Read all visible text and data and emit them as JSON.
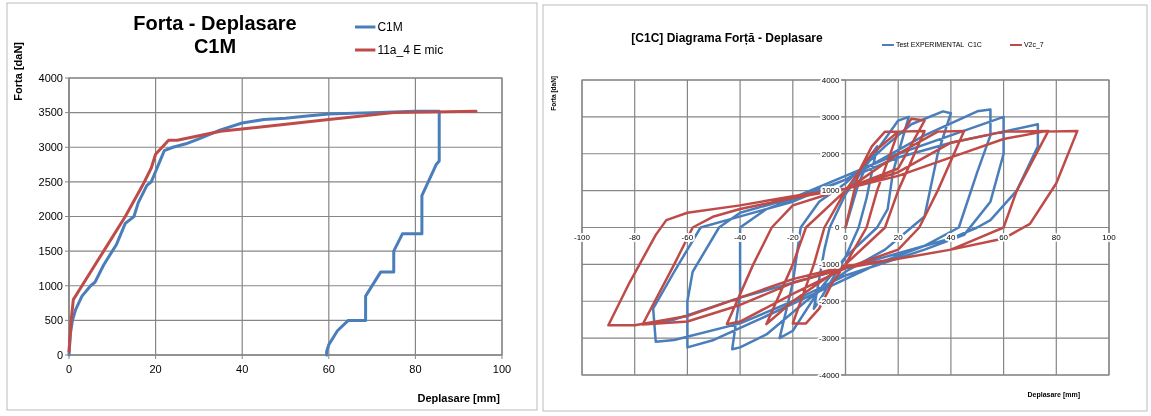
{
  "chart_data": [
    {
      "type": "line",
      "title": "Forta - Deplasare",
      "subtitle": "C1M",
      "xlabel": "Deplasare [mm]",
      "ylabel": "Forta [daN]",
      "xlim": [
        0,
        100
      ],
      "ylim": [
        0,
        4000
      ],
      "xticks": [
        0,
        20,
        40,
        60,
        80,
        100
      ],
      "yticks": [
        0,
        500,
        1000,
        1500,
        2000,
        2500,
        3000,
        3500,
        4000
      ],
      "grid": true,
      "legend": "top right",
      "series": [
        {
          "name": "C1M",
          "color": "#4a7ebb",
          "x": [
            0,
            0.3,
            0.8,
            1.5,
            3,
            5,
            6,
            8,
            10,
            11,
            13,
            15,
            16,
            18,
            19,
            20,
            21,
            22,
            24,
            27,
            30,
            35,
            40,
            45,
            50,
            55,
            60,
            70,
            80,
            85.5,
            85.5,
            84.8,
            81.5,
            81.5,
            77,
            75,
            75,
            72,
            68.5,
            68.5,
            64.5,
            62,
            61,
            60,
            59.5,
            59.5
          ],
          "values": [
            0,
            300,
            500,
            650,
            850,
            1000,
            1050,
            1300,
            1500,
            1600,
            1900,
            2000,
            2200,
            2450,
            2500,
            2650,
            2800,
            2950,
            3000,
            3050,
            3120,
            3250,
            3350,
            3400,
            3420,
            3450,
            3480,
            3500,
            3520,
            3520,
            2800,
            2750,
            2300,
            1750,
            1750,
            1500,
            1200,
            1200,
            850,
            500,
            500,
            350,
            250,
            150,
            50,
            0
          ]
        },
        {
          "name": "11a_4 E mic",
          "color": "#be4b48",
          "x": [
            0,
            0.5,
            1,
            3,
            8,
            13,
            17,
            19,
            20,
            23,
            25,
            35,
            60,
            75,
            94
          ],
          "values": [
            50,
            500,
            800,
            1000,
            1500,
            2000,
            2450,
            2700,
            2900,
            3100,
            3100,
            3230,
            3400,
            3500,
            3520
          ]
        }
      ]
    },
    {
      "type": "line",
      "title": "[C1C] Diagrama Forță - Deplasare",
      "xlabel": "Deplasare [mm]",
      "ylabel": "Forta [daN]",
      "xlim": [
        -100,
        100
      ],
      "ylim": [
        -4000,
        4000
      ],
      "xticks": [
        -100,
        -80,
        -60,
        -40,
        -20,
        0,
        20,
        40,
        60,
        80,
        100
      ],
      "yticks": [
        -4000,
        -3000,
        -2000,
        -1000,
        0,
        1000,
        2000,
        3000,
        4000
      ],
      "grid": true,
      "legend": "top",
      "series": [
        {
          "name": "Test EXPERIMENTAL  C1C",
          "color": "#4a7ebb",
          "x": [
            0,
            5,
            10,
            12,
            8,
            5,
            0,
            -5,
            -10,
            -12,
            -8,
            -6,
            0,
            10,
            20,
            24,
            18,
            16,
            12,
            0,
            -10,
            -20,
            -25,
            -20,
            -17,
            -10,
            0,
            15,
            25,
            37,
            40,
            35,
            30,
            25,
            15,
            0,
            -15,
            -30,
            -40,
            -43,
            -40,
            -40,
            -30,
            -15,
            0,
            15,
            30,
            50,
            55,
            55,
            50,
            43,
            30,
            15,
            0,
            -15,
            -30,
            -50,
            -60,
            -60,
            -58,
            -48,
            -40,
            -20,
            0,
            20,
            40,
            60,
            60,
            55,
            45,
            30,
            0,
            -20,
            -40,
            -65,
            -72,
            -73,
            -65,
            -55,
            -45,
            -20,
            0,
            20,
            40,
            60,
            73,
            73,
            65,
            55,
            50,
            40,
            20,
            0,
            -20,
            -40,
            -65,
            -72
          ],
          "values": [
            0,
            1200,
            2000,
            2200,
            800,
            0,
            -800,
            -1400,
            -2000,
            -2200,
            -600,
            0,
            900,
            1900,
            2900,
            3000,
            1500,
            500,
            0,
            -800,
            -1700,
            -2800,
            -3000,
            -1500,
            0,
            700,
            1200,
            2200,
            2800,
            3150,
            3100,
            2000,
            300,
            0,
            -600,
            -1200,
            -2000,
            -2900,
            -3250,
            -3300,
            -1800,
            0,
            500,
            900,
            1300,
            1900,
            2500,
            3150,
            3200,
            2500,
            1500,
            0,
            -500,
            -900,
            -1400,
            -1900,
            -2400,
            -3050,
            -3250,
            -2000,
            -1200,
            0,
            400,
            800,
            1400,
            2000,
            2500,
            3000,
            2000,
            700,
            -200,
            -600,
            -1300,
            -2000,
            -2600,
            -3050,
            -3100,
            -2200,
            -1200,
            0,
            200,
            700,
            1300,
            1900,
            2300,
            2600,
            2800,
            2200,
            1000,
            200,
            0,
            -300,
            -700,
            -1100,
            -1500,
            -1900,
            -2500,
            -2600
          ]
        },
        {
          "name": "V2c_7",
          "color": "#be4b48",
          "x": [
            0,
            5,
            10,
            15,
            20,
            12,
            8,
            0,
            -5,
            -10,
            -15,
            -20,
            -12,
            -8,
            0,
            10,
            20,
            30,
            20,
            15,
            0,
            -20,
            -30,
            -20,
            -15,
            0,
            20,
            35,
            45,
            35,
            28,
            20,
            0,
            -20,
            -40,
            -45,
            -35,
            -28,
            -20,
            0,
            20,
            40,
            60,
            77,
            65,
            60,
            50,
            40,
            20,
            0,
            -20,
            -40,
            -60,
            -77,
            -65,
            -58,
            -50,
            -40,
            -20,
            0,
            20,
            40,
            60,
            75,
            88,
            80,
            70,
            60,
            40,
            20,
            0,
            -20,
            -40,
            -60,
            -80,
            -90,
            -82,
            -72,
            -68,
            -60,
            -40,
            -20,
            0,
            20,
            30,
            25,
            22
          ],
          "values": [
            0,
            1500,
            2200,
            2600,
            2600,
            1000,
            0,
            -1000,
            -1500,
            -2200,
            -2600,
            -2600,
            -1000,
            0,
            1000,
            2000,
            2600,
            2620,
            1000,
            0,
            -1000,
            -2000,
            -2620,
            -1000,
            0,
            1000,
            2000,
            2600,
            2620,
            1000,
            0,
            -600,
            -1100,
            -1800,
            -2550,
            -2620,
            -1000,
            0,
            600,
            1050,
            1500,
            2300,
            2600,
            2620,
            1000,
            0,
            -300,
            -600,
            -850,
            -1100,
            -1500,
            -2100,
            -2550,
            -2630,
            -1000,
            0,
            300,
            500,
            800,
            1050,
            1400,
            1900,
            2400,
            2600,
            2620,
            1200,
            100,
            -300,
            -600,
            -850,
            -1050,
            -1400,
            -1900,
            -2400,
            -2650,
            -2650,
            -1500,
            -200,
            200,
            400,
            600,
            850,
            1050,
            1600,
            2900,
            2950,
            2600
          ]
        }
      ]
    }
  ]
}
